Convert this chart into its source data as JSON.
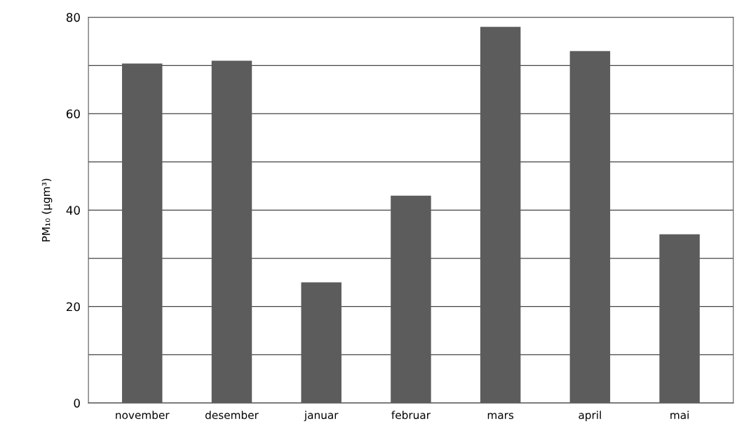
{
  "chart_data": {
    "type": "bar",
    "ylabel": "PM₁₀ (µgm³)",
    "categories": [
      "november",
      "desember",
      "januar",
      "februar",
      "mars",
      "april",
      "mai"
    ],
    "values": [
      70.4,
      71,
      25,
      43,
      78,
      73,
      35
    ],
    "color": "#5c5c5c",
    "ylim": [
      0,
      80
    ],
    "yticks": [
      0,
      {
        "value": 10,
        "label": null
      },
      20,
      {
        "value": 30,
        "label": null
      },
      40,
      {
        "value": 50,
        "label": null
      },
      60,
      {
        "value": 70,
        "label": null
      },
      80
    ],
    "grid": "y",
    "legend": false
  }
}
